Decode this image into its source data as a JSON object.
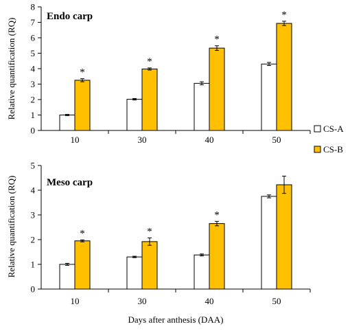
{
  "chart_data": [
    {
      "type": "bar",
      "title": "Endo carp",
      "ylabel": "Relative quantification (RQ)",
      "categories": [
        "10",
        "30",
        "40",
        "50"
      ],
      "ylim": [
        0,
        8
      ],
      "yticks": [
        "0",
        "1",
        "2",
        "3",
        "4",
        "5",
        "6",
        "7",
        "8"
      ],
      "series": [
        {
          "name": "CS-A",
          "values": [
            1.0,
            2.02,
            3.05,
            4.3
          ],
          "errors": [
            0.04,
            0.05,
            0.1,
            0.1
          ]
        },
        {
          "name": "CS-B",
          "values": [
            3.25,
            3.98,
            5.33,
            6.93
          ],
          "errors": [
            0.1,
            0.07,
            0.15,
            0.14
          ]
        }
      ],
      "significance": [
        "*",
        "*",
        "*",
        "*"
      ]
    },
    {
      "type": "bar",
      "title": "Meso carp",
      "ylabel": "Relative quantification (RQ)",
      "categories": [
        "10",
        "30",
        "40",
        "50"
      ],
      "ylim": [
        0,
        5
      ],
      "yticks": [
        "0",
        "1",
        "2",
        "3",
        "4",
        "5"
      ],
      "series": [
        {
          "name": "CS-A",
          "values": [
            1.0,
            1.3,
            1.38,
            3.75
          ],
          "errors": [
            0.04,
            0.03,
            0.04,
            0.06
          ]
        },
        {
          "name": "CS-B",
          "values": [
            1.95,
            1.92,
            2.65,
            4.22
          ],
          "errors": [
            0.04,
            0.15,
            0.09,
            0.35
          ]
        }
      ],
      "significance": [
        "*",
        "*",
        "*",
        ""
      ]
    }
  ],
  "xlabel": "Days after anthesis (DAA)",
  "legend": {
    "placement": "right",
    "items": [
      {
        "label": "CS-A",
        "color": "#ffffff"
      },
      {
        "label": "CS-B",
        "color": "#ffc000"
      }
    ]
  },
  "colors": {
    "series_a": "#ffffff",
    "series_b": "#ffc000",
    "axis": "#000000"
  }
}
